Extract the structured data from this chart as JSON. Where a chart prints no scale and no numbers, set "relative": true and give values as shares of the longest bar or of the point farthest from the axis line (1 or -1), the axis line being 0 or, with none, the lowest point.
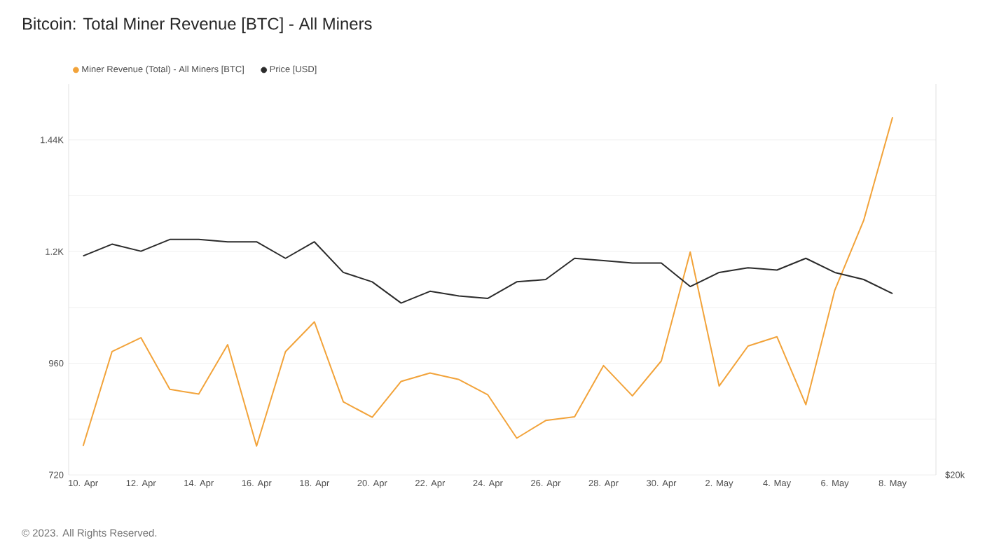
{
  "chart_data": [
    {
      "type": "line",
      "title": "Bitcoin: Total Miner Revenue [BTC] - All Miners",
      "annotations": [
        "© 2023. All Rights Reserved."
      ],
      "x": [
        "2023-04-10",
        "2023-04-11",
        "2023-04-12",
        "2023-04-13",
        "2023-04-14",
        "2023-04-15",
        "2023-04-16",
        "2023-04-17",
        "2023-04-18",
        "2023-04-19",
        "2023-04-20",
        "2023-04-21",
        "2023-04-22",
        "2023-04-23",
        "2023-04-24",
        "2023-04-25",
        "2023-04-26",
        "2023-04-27",
        "2023-04-28",
        "2023-04-29",
        "2023-04-30",
        "2023-05-01",
        "2023-05-02",
        "2023-05-03",
        "2023-05-04",
        "2023-05-05",
        "2023-05-06",
        "2023-05-07",
        "2023-05-08"
      ],
      "series": [
        {
          "name": "Miner Revenue (Total) - All Miners [BTC]",
          "color": "#f2a33a",
          "values": [
            782,
            985,
            1015,
            904,
            894,
            1000,
            782,
            985,
            1049,
            877,
            844,
            921,
            939,
            925,
            892,
            799,
            837,
            845,
            955,
            890,
            965,
            1199,
            911,
            997,
            1017,
            871,
            1117,
            1267,
            1489
          ]
        }
      ],
      "xlim": [
        "2023-04-09T12:00",
        "2023-05-09T12:00"
      ],
      "xticks": [
        {
          "value": "2023-04-10",
          "label": "10. Apr"
        },
        {
          "value": "2023-04-12",
          "label": "12. Apr"
        },
        {
          "value": "2023-04-14",
          "label": "14. Apr"
        },
        {
          "value": "2023-04-16",
          "label": "16. Apr"
        },
        {
          "value": "2023-04-18",
          "label": "18. Apr"
        },
        {
          "value": "2023-04-20",
          "label": "20. Apr"
        },
        {
          "value": "2023-04-22",
          "label": "22. Apr"
        },
        {
          "value": "2023-04-24",
          "label": "24. Apr"
        },
        {
          "value": "2023-04-26",
          "label": "26. Apr"
        },
        {
          "value": "2023-04-28",
          "label": "28. Apr"
        },
        {
          "value": "2023-04-30",
          "label": "30. Apr"
        },
        {
          "value": "2023-05-02",
          "label": "2. May"
        },
        {
          "value": "2023-05-04",
          "label": "4. May"
        },
        {
          "value": "2023-05-06",
          "label": "6. May"
        },
        {
          "value": "2023-05-08",
          "label": "8. May"
        }
      ],
      "ylim": [
        720,
        1560
      ],
      "yticks": [
        720,
        {
          "value": 840,
          "label": null
        },
        960,
        {
          "value": 1080,
          "label": null
        },
        {
          "value": 1200,
          "label": "1.2K"
        },
        {
          "value": 1320,
          "label": null
        },
        {
          "value": 1440,
          "label": "1.44K"
        }
      ],
      "grid": "y",
      "legend": "top left"
    },
    {
      "type": "line",
      "relative": true,
      "annotations": [
        "$20k"
      ],
      "x": [
        "2023-04-10",
        "2023-04-11",
        "2023-04-12",
        "2023-04-13",
        "2023-04-14",
        "2023-04-15",
        "2023-04-16",
        "2023-04-17",
        "2023-04-18",
        "2023-04-19",
        "2023-04-20",
        "2023-04-21",
        "2023-04-22",
        "2023-04-23",
        "2023-04-24",
        "2023-04-25",
        "2023-04-26",
        "2023-04-27",
        "2023-04-28",
        "2023-04-29",
        "2023-04-30",
        "2023-05-01",
        "2023-05-02",
        "2023-05-03",
        "2023-05-04",
        "2023-05-05",
        "2023-05-06",
        "2023-05-07",
        "2023-05-08"
      ],
      "xlim": [
        "2023-04-09T12:00",
        "2023-05-09T12:00"
      ],
      "series": [
        {
          "name": "Price [USD]",
          "color": "#2b2b2b",
          "values": [
            0.93,
            0.98,
            0.95,
            1.0,
            1.0,
            0.99,
            0.99,
            0.92,
            0.99,
            0.86,
            0.82,
            0.73,
            0.78,
            0.76,
            0.75,
            0.82,
            0.83,
            0.92,
            0.91,
            0.9,
            0.9,
            0.8,
            0.86,
            0.88,
            0.87,
            0.92,
            0.86,
            0.83,
            0.77
          ]
        }
      ]
    }
  ]
}
